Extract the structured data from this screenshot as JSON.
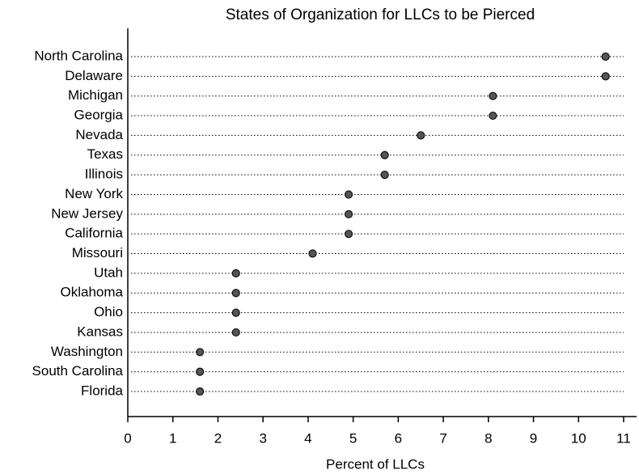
{
  "chart_data": {
    "type": "dot",
    "title": "States of Organization for LLCs to be Pierced",
    "x_label": "Percent of LLCs",
    "categories": [
      "North Carolina",
      "Delaware",
      "Michigan",
      "Georgia",
      "Nevada",
      "Texas",
      "Illinois",
      "New York",
      "New Jersey",
      "California",
      "Missouri",
      "Utah",
      "Oklahoma",
      "Ohio",
      "Kansas",
      "Washington",
      "South Carolina",
      "Florida"
    ],
    "values": [
      10.6,
      10.6,
      8.1,
      8.1,
      6.5,
      5.7,
      5.7,
      4.9,
      4.9,
      4.9,
      4.1,
      2.4,
      2.4,
      2.4,
      2.4,
      1.6,
      1.6,
      1.6
    ],
    "color": "#555555",
    "xlim": [
      0,
      11
    ],
    "xticks": [
      0,
      1,
      2,
      3,
      4,
      5,
      6,
      7,
      8,
      9,
      10,
      11
    ]
  }
}
